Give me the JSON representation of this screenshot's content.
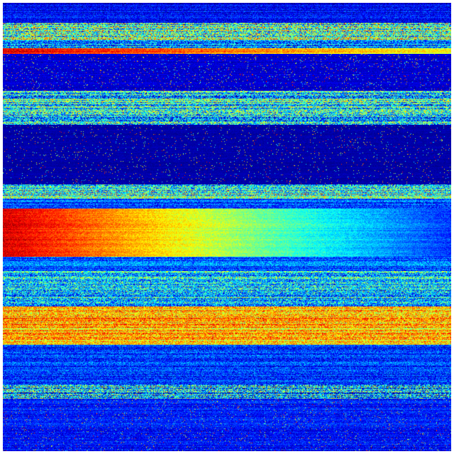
{
  "chart_data": {
    "type": "heatmap",
    "colormap": "jet",
    "value_range": [
      0,
      1
    ],
    "rows": 632,
    "columns": 632,
    "title": "",
    "xlabel": "",
    "ylabel": "",
    "grid": false,
    "legend": "none",
    "bands": [
      {
        "row_start": 0,
        "row_end": 28,
        "level": 0.12,
        "level_right": 0.12,
        "noise": 0.12,
        "sparse": 0.0
      },
      {
        "row_start": 28,
        "row_end": 52,
        "level": 0.45,
        "level_right": 0.45,
        "noise": 0.35,
        "sparse": 0.0
      },
      {
        "row_start": 52,
        "row_end": 64,
        "level": 0.25,
        "level_right": 0.25,
        "noise": 0.25,
        "sparse": 0.0
      },
      {
        "row_start": 64,
        "row_end": 72,
        "level": 0.88,
        "level_right": 0.6,
        "noise": 0.1,
        "sparse": 0.0
      },
      {
        "row_start": 72,
        "row_end": 124,
        "level": 0.08,
        "level_right": 0.08,
        "noise": 0.05,
        "sparse": 0.04
      },
      {
        "row_start": 124,
        "row_end": 172,
        "level": 0.38,
        "level_right": 0.38,
        "noise": 0.32,
        "sparse": 0.0
      },
      {
        "row_start": 172,
        "row_end": 256,
        "level": 0.04,
        "level_right": 0.04,
        "noise": 0.03,
        "sparse": 0.03
      },
      {
        "row_start": 256,
        "row_end": 276,
        "level": 0.4,
        "level_right": 0.4,
        "noise": 0.3,
        "sparse": 0.0
      },
      {
        "row_start": 276,
        "row_end": 290,
        "level": 0.2,
        "level_right": 0.2,
        "noise": 0.15,
        "sparse": 0.0
      },
      {
        "row_start": 290,
        "row_end": 358,
        "level": 0.92,
        "level_right": 0.18,
        "noise": 0.08,
        "sparse": 0.0
      },
      {
        "row_start": 358,
        "row_end": 378,
        "level": 0.22,
        "level_right": 0.22,
        "noise": 0.15,
        "sparse": 0.0
      },
      {
        "row_start": 378,
        "row_end": 428,
        "level": 0.35,
        "level_right": 0.35,
        "noise": 0.28,
        "sparse": 0.0
      },
      {
        "row_start": 428,
        "row_end": 482,
        "level": 0.7,
        "level_right": 0.68,
        "noise": 0.2,
        "sparse": 0.0
      },
      {
        "row_start": 482,
        "row_end": 538,
        "level": 0.18,
        "level_right": 0.18,
        "noise": 0.15,
        "sparse": 0.0
      },
      {
        "row_start": 538,
        "row_end": 558,
        "level": 0.35,
        "level_right": 0.3,
        "noise": 0.35,
        "sparse": 0.0
      },
      {
        "row_start": 558,
        "row_end": 632,
        "level": 0.14,
        "level_right": 0.14,
        "noise": 0.1,
        "sparse": 0.03
      }
    ]
  }
}
